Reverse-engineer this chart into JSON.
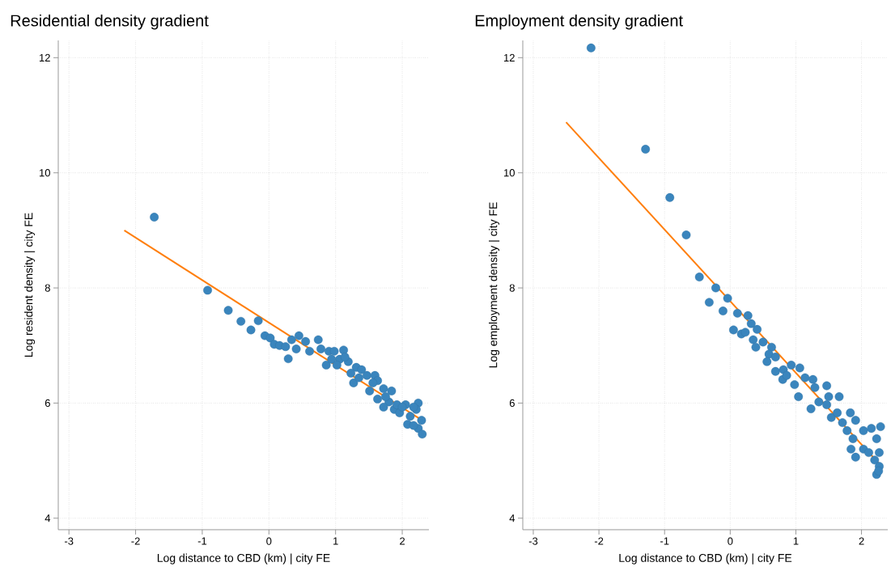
{
  "chart_data": [
    {
      "type": "scatter",
      "title": "Residential density gradient",
      "xlabel": "Log distance to CBD (km) | city FE",
      "ylabel": "Log resident density | city FE",
      "xlim": [
        -3.16,
        2.4
      ],
      "ylim": [
        3.8,
        12.3
      ],
      "xticks": [
        -3,
        -2,
        -1,
        0,
        1,
        2
      ],
      "yticks": [
        4,
        6,
        8,
        10,
        12
      ],
      "grid": true,
      "series": [
        {
          "marker": "circle",
          "color": "#3a85bd",
          "x": [
            -1.72,
            -0.92,
            -0.61,
            -0.42,
            -0.16,
            -0.27,
            -0.06,
            0.02,
            0.08,
            0.16,
            0.25,
            0.29,
            0.34,
            0.45,
            0.41,
            0.55,
            0.74,
            0.61,
            0.78,
            0.86,
            0.9,
            0.98,
            1.12,
            1.06,
            1.19,
            1.31,
            1.39,
            1.27,
            1.47,
            1.59,
            1.63,
            1.51,
            1.72,
            1.84,
            1.63,
            1.8,
            1.88,
            1.96,
            2.05,
            2.24,
            2.12,
            2.21,
            2.29,
            2.08,
            2.24,
            2.3,
            2.17,
            1.23,
            1.35,
            1.14,
            0.94,
            1.02,
            1.56,
            1.75,
            1.92,
            2.0,
            2.17,
            1.72
          ],
          "values": [
            9.23,
            7.96,
            7.61,
            7.42,
            7.43,
            7.27,
            7.17,
            7.13,
            7.02,
            7.0,
            6.98,
            6.77,
            7.1,
            7.17,
            6.94,
            7.07,
            7.1,
            6.9,
            6.94,
            6.66,
            6.9,
            6.9,
            6.92,
            6.76,
            6.72,
            6.62,
            6.58,
            6.35,
            6.48,
            6.48,
            6.39,
            6.21,
            6.25,
            6.21,
            6.07,
            6.02,
            5.89,
            5.83,
            5.97,
            6.0,
            5.77,
            5.89,
            5.7,
            5.63,
            5.56,
            5.46,
            5.61,
            6.52,
            6.44,
            6.8,
            6.76,
            6.66,
            6.35,
            6.11,
            5.97,
            5.93,
            5.93,
            5.93
          ]
        },
        {
          "type": "line",
          "marker": "none",
          "color": "#ff7f0e",
          "x": [
            -2.17,
            2.34
          ],
          "values": [
            9.0,
            5.67
          ]
        }
      ]
    },
    {
      "type": "scatter",
      "title": "Employment density gradient",
      "xlabel": "Log distance to CBD (km) | city FE",
      "ylabel": "Log employment density | city FE",
      "xlim": [
        -3.16,
        2.4
      ],
      "ylim": [
        3.8,
        12.3
      ],
      "xticks": [
        -3,
        -2,
        -1,
        0,
        1,
        2
      ],
      "yticks": [
        4,
        6,
        8,
        10,
        12
      ],
      "grid": true,
      "series": [
        {
          "marker": "circle",
          "color": "#3a85bd",
          "x": [
            -2.12,
            -1.29,
            -0.92,
            -0.67,
            -0.47,
            -0.32,
            -0.22,
            -0.11,
            -0.04,
            0.11,
            0.27,
            0.32,
            0.05,
            0.17,
            0.23,
            0.41,
            0.35,
            0.39,
            0.5,
            0.63,
            0.59,
            0.56,
            0.69,
            0.69,
            0.8,
            0.81,
            0.93,
            1.06,
            0.86,
            0.98,
            1.04,
            1.14,
            1.26,
            1.29,
            1.47,
            1.23,
            1.35,
            1.47,
            1.5,
            1.66,
            1.54,
            1.63,
            1.71,
            1.83,
            1.78,
            1.91,
            1.87,
            2.03,
            2.15,
            2.23,
            1.84,
            1.91,
            2.03,
            2.2,
            2.27,
            2.23,
            2.11,
            2.27,
            2.29,
            2.26
          ],
          "values": [
            12.17,
            10.41,
            9.57,
            8.92,
            8.19,
            7.75,
            8.0,
            7.6,
            7.82,
            7.56,
            7.52,
            7.38,
            7.27,
            7.2,
            7.23,
            7.28,
            7.1,
            6.97,
            7.06,
            6.97,
            6.85,
            6.72,
            6.8,
            6.55,
            6.41,
            6.58,
            6.66,
            6.61,
            6.48,
            6.32,
            6.11,
            6.44,
            6.41,
            6.27,
            6.3,
            5.9,
            6.02,
            5.97,
            6.11,
            6.11,
            5.75,
            5.83,
            5.66,
            5.83,
            5.52,
            5.7,
            5.38,
            5.52,
            5.56,
            5.38,
            5.2,
            5.06,
            5.2,
            5.01,
            4.9,
            4.76,
            5.14,
            5.14,
            5.59,
            4.82
          ]
        },
        {
          "type": "line",
          "marker": "none",
          "color": "#ff7f0e",
          "x": [
            -2.5,
            2.29
          ],
          "values": [
            10.88,
            4.92
          ]
        }
      ]
    }
  ]
}
